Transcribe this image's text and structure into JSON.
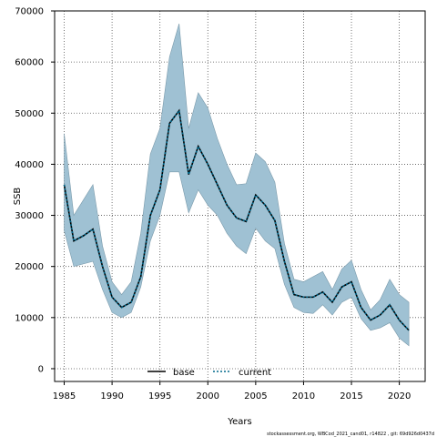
{
  "chart_data": {
    "type": "line",
    "xlabel": "Years",
    "ylabel": "SSB",
    "xlim": [
      1984,
      2022.7
    ],
    "ylim": [
      -2500,
      70000
    ],
    "x_ticks": [
      1985,
      1990,
      1995,
      2000,
      2005,
      2010,
      2015,
      2020
    ],
    "y_ticks": [
      0,
      10000,
      20000,
      30000,
      40000,
      50000,
      60000,
      70000
    ],
    "grid": true,
    "legend_position": "bottom-center",
    "x": [
      1985,
      1986,
      1987,
      1988,
      1989,
      1990,
      1991,
      1992,
      1993,
      1994,
      1995,
      1996,
      1997,
      1998,
      1999,
      2000,
      2001,
      2002,
      2003,
      2004,
      2005,
      2006,
      2007,
      2008,
      2009,
      2010,
      2011,
      2012,
      2013,
      2014,
      2015,
      2016,
      2017,
      2018,
      2019,
      2020,
      2021
    ],
    "series": [
      {
        "name": "base",
        "color": "#000000",
        "style": "solid",
        "values": [
          36000,
          25000,
          26000,
          27300,
          20000,
          14000,
          12000,
          13000,
          18000,
          30000,
          35000,
          48000,
          50500,
          38000,
          43500,
          40000,
          36000,
          32000,
          29500,
          28800,
          34000,
          32000,
          29000,
          21000,
          14500,
          14000,
          14000,
          15000,
          13000,
          16000,
          17000,
          12000,
          9500,
          10500,
          12500,
          9500,
          7500
        ]
      },
      {
        "name": "current",
        "color": "#00688b",
        "style": "dotted",
        "values": [
          36000,
          25000,
          26000,
          27300,
          20000,
          14000,
          12000,
          13000,
          18000,
          30000,
          35000,
          48000,
          50500,
          38000,
          43500,
          40000,
          36000,
          32000,
          29500,
          28800,
          34000,
          32000,
          29000,
          21000,
          14500,
          14000,
          14000,
          15000,
          13000,
          16000,
          17000,
          12000,
          9500,
          10500,
          12500,
          9500,
          7500
        ]
      }
    ],
    "band": {
      "color": "#9fc1d3",
      "lower": [
        27000,
        20000,
        20500,
        21000,
        15500,
        11000,
        10000,
        11000,
        16000,
        25000,
        30000,
        38500,
        38500,
        30500,
        35000,
        32000,
        30000,
        26500,
        24000,
        22500,
        27500,
        25000,
        23500,
        16500,
        12000,
        11000,
        10800,
        12500,
        10500,
        13000,
        14000,
        9800,
        7500,
        8000,
        9000,
        6000,
        4500
      ],
      "upper": [
        46000,
        30000,
        33000,
        36000,
        24000,
        17000,
        14500,
        17000,
        26500,
        42000,
        47000,
        61000,
        67500,
        47000,
        54000,
        51000,
        45000,
        40000,
        36000,
        36200,
        42200,
        40500,
        36500,
        24500,
        17500,
        17000,
        18000,
        19000,
        15500,
        19500,
        21200,
        15500,
        11500,
        13500,
        17500,
        14500,
        13000
      ]
    },
    "footnote": "stockassessment.org, WBCod_2021_cand01, r14822 , git: 69d926d0437d"
  }
}
